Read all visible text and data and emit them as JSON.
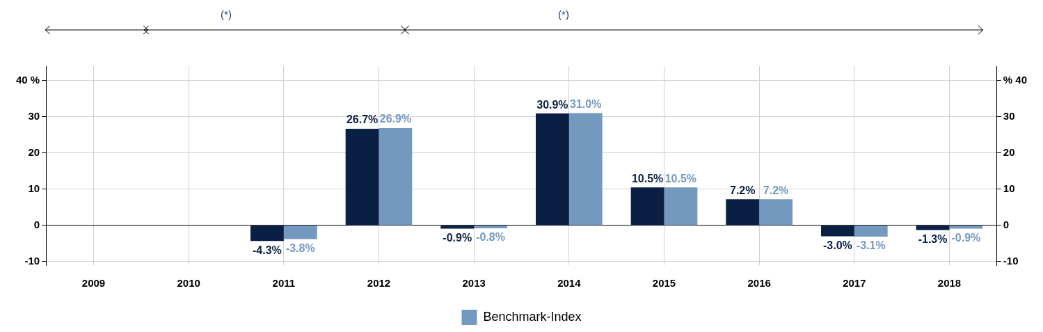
{
  "chart_data": {
    "type": "bar",
    "annotations": [
      "(*)",
      "(*)"
    ],
    "categories": [
      "2009",
      "2010",
      "2011",
      "2012",
      "2013",
      "2014",
      "2015",
      "2016",
      "2017",
      "2018"
    ],
    "series": [
      {
        "color": "#0a1f44",
        "values": [
          null,
          null,
          -4.3,
          26.7,
          -0.9,
          30.9,
          10.5,
          7.2,
          -3.0,
          -1.3
        ],
        "value_labels": [
          null,
          null,
          "-4.3%",
          "26.7%",
          "-0.9%",
          "30.9%",
          "10.5%",
          "7.2%",
          "-3.0%",
          "-1.3%"
        ]
      },
      {
        "name": "Benchmark-Index",
        "color": "#7399bf",
        "values": [
          null,
          null,
          -3.8,
          26.9,
          -0.8,
          31.0,
          10.5,
          7.2,
          -3.1,
          -0.9
        ],
        "value_labels": [
          null,
          null,
          "-3.8%",
          "26.9%",
          "-0.8%",
          "31.0%",
          "10.5%",
          "7.2%",
          "-3.1%",
          "-0.9%"
        ]
      }
    ],
    "ylim": [
      -11,
      44
    ],
    "yticks": [
      -10,
      0,
      10,
      20,
      30,
      {
        "value": 40,
        "label": "40 %"
      }
    ],
    "y2lim": [
      -11,
      44
    ],
    "y2ticks": [
      -10,
      0,
      10,
      20,
      30,
      {
        "value": 40,
        "label": "% 40"
      }
    ],
    "grid": true,
    "legend": "bottom"
  }
}
